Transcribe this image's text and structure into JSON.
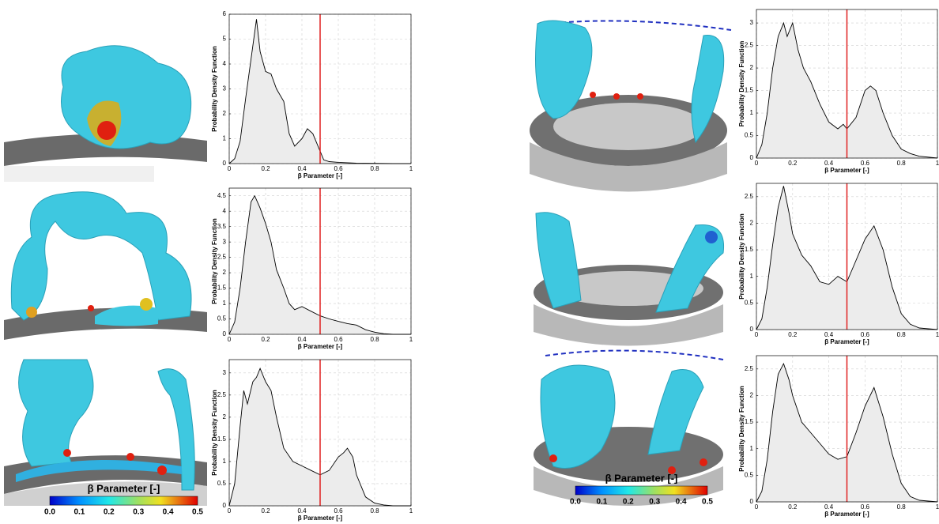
{
  "chart_data": [
    {
      "type": "area",
      "xlabel": "β Parameter [-]",
      "ylabel": "Probability Density Function",
      "xlim": [
        0,
        1
      ],
      "xticks": [
        0,
        0.2,
        0.4,
        0.6,
        0.8,
        1
      ],
      "ylim": [
        0,
        6
      ],
      "yticks": [
        0,
        1,
        2,
        3,
        4,
        5,
        6
      ],
      "grid": true,
      "color": "#000000",
      "fill": "#ececec",
      "vline": {
        "x": 0.5,
        "color": "#e02020"
      },
      "x": [
        0,
        0.03,
        0.06,
        0.09,
        0.12,
        0.15,
        0.17,
        0.2,
        0.23,
        0.26,
        0.3,
        0.33,
        0.36,
        0.4,
        0.43,
        0.46,
        0.5,
        0.52,
        0.55,
        0.6,
        0.7,
        0.8,
        0.9,
        1
      ],
      "values": [
        0,
        0.2,
        0.9,
        2.6,
        4.2,
        5.8,
        4.5,
        3.7,
        3.6,
        3.0,
        2.5,
        1.2,
        0.7,
        1.0,
        1.4,
        1.2,
        0.5,
        0.15,
        0.08,
        0.05,
        0.02,
        0.01,
        0,
        0
      ]
    },
    {
      "type": "area",
      "xlabel": "β Parameter [-]",
      "ylabel": "Probability Density Function",
      "xlim": [
        0,
        1
      ],
      "xticks": [
        0,
        0.2,
        0.4,
        0.6,
        0.8,
        1
      ],
      "ylim": [
        0,
        4.75
      ],
      "yticks": [
        0,
        0.5,
        1,
        1.5,
        2,
        2.5,
        3,
        3.5,
        4,
        4.5
      ],
      "grid": true,
      "color": "#000000",
      "fill": "#ececec",
      "vline": {
        "x": 0.5,
        "color": "#e02020"
      },
      "x": [
        0,
        0.03,
        0.06,
        0.09,
        0.12,
        0.14,
        0.17,
        0.2,
        0.23,
        0.26,
        0.3,
        0.33,
        0.36,
        0.4,
        0.45,
        0.5,
        0.55,
        0.6,
        0.65,
        0.7,
        0.75,
        0.8,
        0.85,
        0.9,
        1
      ],
      "values": [
        0,
        0.4,
        1.5,
        3.0,
        4.3,
        4.5,
        4.1,
        3.6,
        3.0,
        2.1,
        1.5,
        1.0,
        0.8,
        0.9,
        0.75,
        0.6,
        0.5,
        0.42,
        0.35,
        0.3,
        0.15,
        0.07,
        0.02,
        0,
        0
      ]
    },
    {
      "type": "area",
      "xlabel": "β Parameter [-]",
      "ylabel": "Probability Density Function",
      "xlim": [
        0,
        1
      ],
      "xticks": [
        0,
        0.2,
        0.4,
        0.6,
        0.8,
        1
      ],
      "ylim": [
        0,
        3.3
      ],
      "yticks": [
        0,
        0.5,
        1,
        1.5,
        2,
        2.5,
        3
      ],
      "grid": true,
      "color": "#000000",
      "fill": "#ececec",
      "vline": {
        "x": 0.5,
        "color": "#e02020"
      },
      "x": [
        0,
        0.03,
        0.06,
        0.08,
        0.1,
        0.13,
        0.15,
        0.17,
        0.2,
        0.23,
        0.26,
        0.3,
        0.35,
        0.4,
        0.45,
        0.5,
        0.55,
        0.6,
        0.63,
        0.65,
        0.68,
        0.7,
        0.75,
        0.8,
        0.85,
        0.9,
        1
      ],
      "values": [
        0,
        0.5,
        1.8,
        2.6,
        2.3,
        2.8,
        2.9,
        3.1,
        2.8,
        2.6,
        2.0,
        1.3,
        1.0,
        0.9,
        0.8,
        0.7,
        0.8,
        1.1,
        1.2,
        1.3,
        1.1,
        0.7,
        0.2,
        0.06,
        0.02,
        0,
        0
      ]
    },
    {
      "type": "area",
      "xlabel": "β Parameter [-]",
      "ylabel": "Probability Density Function",
      "xlim": [
        0,
        1
      ],
      "xticks": [
        0,
        0.2,
        0.4,
        0.6,
        0.8,
        1
      ],
      "ylim": [
        0,
        3.3
      ],
      "yticks": [
        0,
        0.5,
        1,
        1.5,
        2,
        2.5,
        3
      ],
      "grid": true,
      "color": "#000000",
      "fill": "#ececec",
      "vline": {
        "x": 0.5,
        "color": "#e02020"
      },
      "x": [
        0,
        0.03,
        0.06,
        0.09,
        0.12,
        0.15,
        0.17,
        0.2,
        0.23,
        0.26,
        0.3,
        0.35,
        0.4,
        0.45,
        0.48,
        0.5,
        0.55,
        0.6,
        0.63,
        0.66,
        0.7,
        0.75,
        0.8,
        0.85,
        0.9,
        1
      ],
      "values": [
        0,
        0.3,
        1.0,
        2.0,
        2.7,
        3.0,
        2.7,
        3.0,
        2.4,
        2.0,
        1.7,
        1.2,
        0.8,
        0.65,
        0.75,
        0.65,
        0.9,
        1.5,
        1.6,
        1.5,
        1.0,
        0.5,
        0.2,
        0.1,
        0.04,
        0
      ]
    },
    {
      "type": "area",
      "xlabel": "β Parameter [-]",
      "ylabel": "Probability Density Function",
      "xlim": [
        0,
        1
      ],
      "xticks": [
        0,
        0.2,
        0.4,
        0.6,
        0.8,
        1
      ],
      "ylim": [
        0,
        2.75
      ],
      "yticks": [
        0,
        0.5,
        1,
        1.5,
        2,
        2.5
      ],
      "grid": true,
      "color": "#000000",
      "fill": "#ececec",
      "vline": {
        "x": 0.5,
        "color": "#e02020"
      },
      "x": [
        0,
        0.03,
        0.06,
        0.09,
        0.12,
        0.15,
        0.18,
        0.2,
        0.25,
        0.3,
        0.35,
        0.4,
        0.45,
        0.5,
        0.55,
        0.6,
        0.65,
        0.7,
        0.75,
        0.8,
        0.85,
        0.9,
        1
      ],
      "values": [
        0,
        0.2,
        0.8,
        1.6,
        2.3,
        2.7,
        2.2,
        1.8,
        1.4,
        1.2,
        0.9,
        0.85,
        1.0,
        0.9,
        1.3,
        1.7,
        1.95,
        1.5,
        0.8,
        0.3,
        0.1,
        0.03,
        0
      ]
    },
    {
      "type": "area",
      "xlabel": "β Parameter [-]",
      "ylabel": "Probability Density Function",
      "xlim": [
        0,
        1
      ],
      "xticks": [
        0,
        0.2,
        0.4,
        0.6,
        0.8,
        1
      ],
      "ylim": [
        0,
        2.75
      ],
      "yticks": [
        0,
        0.5,
        1,
        1.5,
        2,
        2.5
      ],
      "grid": true,
      "color": "#000000",
      "fill": "#ececec",
      "vline": {
        "x": 0.5,
        "color": "#e02020"
      },
      "x": [
        0,
        0.03,
        0.06,
        0.09,
        0.12,
        0.15,
        0.18,
        0.2,
        0.25,
        0.3,
        0.35,
        0.4,
        0.45,
        0.5,
        0.55,
        0.6,
        0.65,
        0.7,
        0.75,
        0.8,
        0.85,
        0.9,
        1
      ],
      "values": [
        0,
        0.2,
        0.8,
        1.7,
        2.4,
        2.6,
        2.3,
        2.0,
        1.5,
        1.3,
        1.1,
        0.9,
        0.8,
        0.85,
        1.3,
        1.8,
        2.15,
        1.6,
        0.9,
        0.35,
        0.1,
        0.03,
        0
      ]
    }
  ],
  "colorbars": [
    {
      "title": "β Parameter [-]",
      "ticks": [
        "0.0",
        "0.1",
        "0.2",
        "0.3",
        "0.4",
        "0.5"
      ]
    },
    {
      "title": "β Parameter [-]",
      "ticks": [
        "0.0",
        "0.1",
        "0.2",
        "0.3",
        "0.4",
        "0.5"
      ]
    }
  ]
}
